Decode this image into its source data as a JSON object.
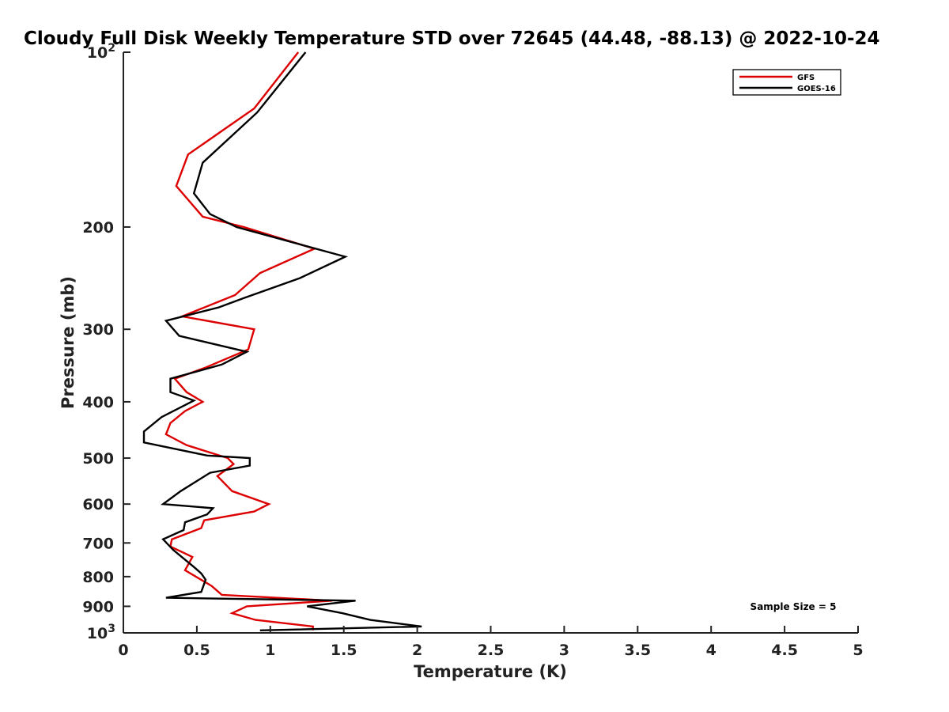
{
  "chart_data": {
    "type": "line",
    "title": "Cloudy Full Disk Weekly Temperature STD over 72645 (44.48, -88.13) @ 2022-10-24",
    "xlabel": "Temperature (K)",
    "ylabel": "Pressure (mb)",
    "xlim": [
      0,
      5
    ],
    "ylim": [
      100,
      1000
    ],
    "y_scale": "log",
    "y_reversed": true,
    "x_ticks": [
      0,
      0.5,
      1,
      1.5,
      2,
      2.5,
      3,
      3.5,
      4,
      4.5,
      5
    ],
    "x_tick_labels": [
      "0",
      "0.5",
      "1",
      "1.5",
      "2",
      "2.5",
      "3",
      "3.5",
      "4",
      "4.5",
      "5"
    ],
    "y_ticks": [
      {
        "value": 100,
        "base": "10",
        "exp": "2"
      },
      {
        "value": 200,
        "label": "200"
      },
      {
        "value": 300,
        "label": "300"
      },
      {
        "value": 400,
        "label": "400"
      },
      {
        "value": 500,
        "label": "500"
      },
      {
        "value": 600,
        "label": "600"
      },
      {
        "value": 700,
        "label": "700"
      },
      {
        "value": 800,
        "label": "800"
      },
      {
        "value": 900,
        "label": "900"
      },
      {
        "value": 1000,
        "base": "10",
        "exp": "3"
      }
    ],
    "legend_position": "top-right",
    "grid": false,
    "annotation": "Sample Size = 5",
    "series": [
      {
        "name": "GFS",
        "color": "#dd0000",
        "points": [
          [
            1.19,
            100
          ],
          [
            0.89,
            125
          ],
          [
            0.44,
            150
          ],
          [
            0.36,
            170
          ],
          [
            0.54,
            192
          ],
          [
            0.82,
            200
          ],
          [
            1.3,
            218
          ],
          [
            0.93,
            240
          ],
          [
            0.76,
            262
          ],
          [
            0.4,
            285
          ],
          [
            0.89,
            300
          ],
          [
            0.85,
            325
          ],
          [
            0.55,
            350
          ],
          [
            0.35,
            365
          ],
          [
            0.43,
            385
          ],
          [
            0.54,
            400
          ],
          [
            0.42,
            415
          ],
          [
            0.32,
            435
          ],
          [
            0.29,
            455
          ],
          [
            0.43,
            475
          ],
          [
            0.71,
            500
          ],
          [
            0.75,
            512
          ],
          [
            0.64,
            537
          ],
          [
            0.74,
            570
          ],
          [
            0.99,
            600
          ],
          [
            0.89,
            618
          ],
          [
            0.55,
            640
          ],
          [
            0.53,
            660
          ],
          [
            0.33,
            690
          ],
          [
            0.32,
            710
          ],
          [
            0.47,
            740
          ],
          [
            0.42,
            780
          ],
          [
            0.6,
            830
          ],
          [
            0.67,
            860
          ],
          [
            1.42,
            880
          ],
          [
            0.84,
            900
          ],
          [
            0.74,
            925
          ],
          [
            0.9,
            950
          ],
          [
            1.29,
            975
          ],
          [
            1.29,
            990
          ]
        ]
      },
      {
        "name": "GOES-16",
        "color": "#000000",
        "points": [
          [
            1.24,
            100
          ],
          [
            0.91,
            127
          ],
          [
            0.54,
            155
          ],
          [
            0.48,
            175
          ],
          [
            0.59,
            190
          ],
          [
            0.77,
            200
          ],
          [
            1.51,
            225
          ],
          [
            1.2,
            245
          ],
          [
            0.82,
            265
          ],
          [
            0.65,
            275
          ],
          [
            0.29,
            290
          ],
          [
            0.38,
            308
          ],
          [
            0.84,
            328
          ],
          [
            0.67,
            345
          ],
          [
            0.32,
            365
          ],
          [
            0.32,
            385
          ],
          [
            0.48,
            398
          ],
          [
            0.26,
            425
          ],
          [
            0.14,
            450
          ],
          [
            0.14,
            470
          ],
          [
            0.57,
            495
          ],
          [
            0.86,
            500
          ],
          [
            0.86,
            515
          ],
          [
            0.59,
            530
          ],
          [
            0.39,
            570
          ],
          [
            0.27,
            600
          ],
          [
            0.61,
            610
          ],
          [
            0.57,
            625
          ],
          [
            0.42,
            645
          ],
          [
            0.41,
            665
          ],
          [
            0.27,
            690
          ],
          [
            0.34,
            720
          ],
          [
            0.48,
            770
          ],
          [
            0.53,
            790
          ],
          [
            0.56,
            810
          ],
          [
            0.53,
            850
          ],
          [
            0.29,
            870
          ],
          [
            1.58,
            880
          ],
          [
            1.25,
            900
          ],
          [
            1.49,
            925
          ],
          [
            1.68,
            950
          ],
          [
            2.03,
            975
          ],
          [
            0.93,
            990
          ]
        ]
      }
    ]
  }
}
